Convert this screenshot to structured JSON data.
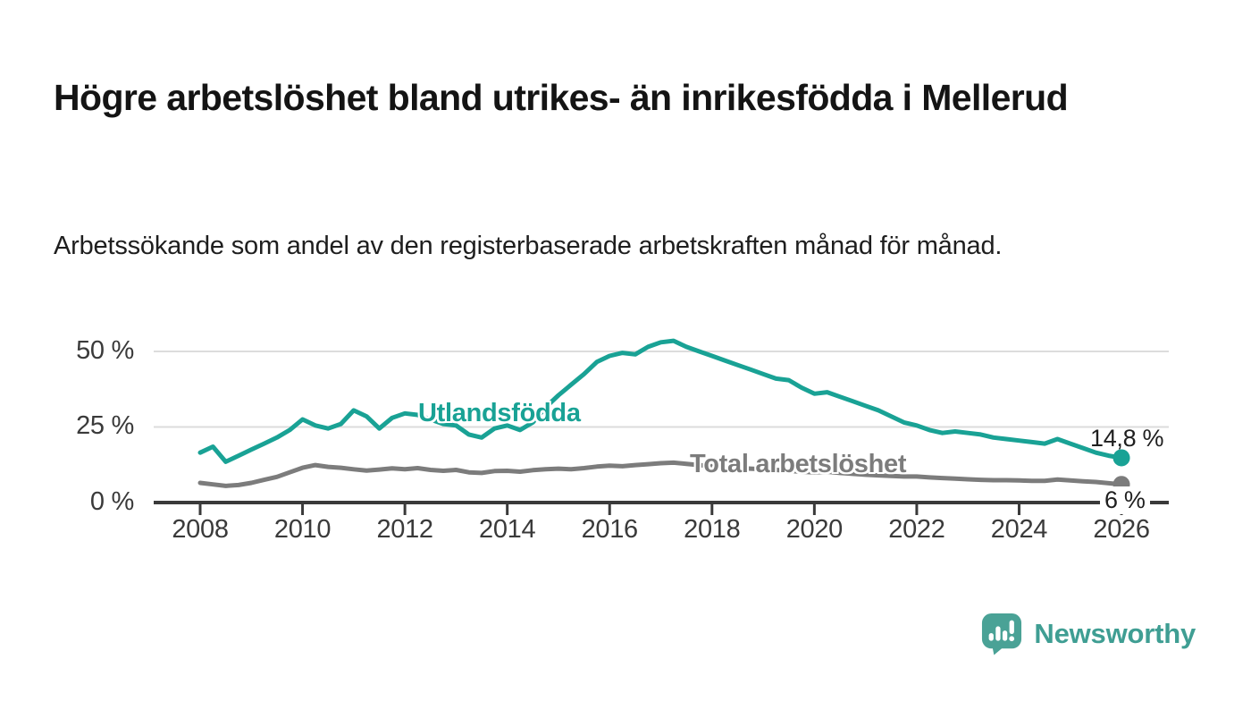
{
  "header": {
    "title": "Högre arbetslöshet bland utrikes- än inrikesfödda i Mellerud",
    "subtitle": "Arbetssökande som andel av den registerbaserade arbetskraften månad för månad."
  },
  "chart_data": {
    "type": "line",
    "unit": "%",
    "x_axis": {
      "ticks": [
        2008,
        2010,
        2012,
        2014,
        2016,
        2018,
        2020,
        2022,
        2024,
        2026
      ],
      "tick_labels": [
        "2008",
        "2010",
        "2012",
        "2014",
        "2016",
        "2018",
        "2020",
        "2022",
        "2024",
        "2026"
      ],
      "range": [
        2007.1,
        2026.9
      ]
    },
    "y_axis": {
      "ticks": [
        0,
        25,
        50
      ],
      "tick_labels": [
        "0 %",
        "25 %",
        "50 %"
      ],
      "range": [
        0,
        57
      ],
      "grid": true
    },
    "colors": {
      "axis": "#3a3a3a",
      "grid": "#dcdcdc",
      "accent": "#19a295"
    },
    "x": [
      2008.0,
      2008.25,
      2008.5,
      2008.75,
      2009.0,
      2009.25,
      2009.5,
      2009.75,
      2010.0,
      2010.25,
      2010.5,
      2010.75,
      2011.0,
      2011.25,
      2011.5,
      2011.75,
      2012.0,
      2012.25,
      2012.5,
      2012.75,
      2013.0,
      2013.25,
      2013.5,
      2013.75,
      2014.0,
      2014.25,
      2014.5,
      2014.75,
      2015.0,
      2015.25,
      2015.5,
      2015.75,
      2016.0,
      2016.25,
      2016.5,
      2016.75,
      2017.0,
      2017.25,
      2017.5,
      2017.75,
      2018.0,
      2018.25,
      2018.5,
      2018.75,
      2019.0,
      2019.25,
      2019.5,
      2019.75,
      2020.0,
      2020.25,
      2020.5,
      2020.75,
      2021.0,
      2021.25,
      2021.5,
      2021.75,
      2022.0,
      2022.25,
      2022.5,
      2022.75,
      2023.0,
      2023.25,
      2023.5,
      2023.75,
      2024.0,
      2024.25,
      2024.5,
      2024.75,
      2025.0,
      2025.25,
      2025.5,
      2025.75,
      2026.0
    ],
    "series": [
      {
        "name": "Utlandsfödda",
        "label": "Utlandsfödda",
        "end_label": "14,8 %",
        "end_value": 14.8,
        "color": "#19a295",
        "y": [
          16.5,
          18.5,
          13.5,
          15.5,
          17.5,
          19.5,
          21.5,
          24.0,
          27.5,
          25.5,
          24.5,
          26.0,
          30.5,
          28.5,
          24.5,
          28.0,
          29.5,
          29.0,
          27.5,
          26.0,
          25.5,
          22.5,
          21.5,
          24.5,
          25.5,
          24.0,
          26.5,
          31.5,
          35.5,
          39.0,
          42.5,
          46.5,
          48.5,
          49.5,
          49.0,
          51.5,
          53.0,
          53.5,
          51.5,
          50.0,
          48.5,
          47.0,
          45.5,
          44.0,
          42.5,
          41.0,
          40.5,
          38.0,
          36.0,
          36.5,
          35.0,
          33.5,
          32.0,
          30.5,
          28.5,
          26.5,
          25.5,
          24.0,
          23.0,
          23.5,
          23.0,
          22.5,
          21.5,
          21.0,
          20.5,
          20.0,
          19.5,
          21.0,
          19.5,
          18.0,
          16.5,
          15.5,
          14.8
        ]
      },
      {
        "name": "Total arbetslöshet",
        "label": "Total arbetslöshet",
        "end_label": "6 %",
        "end_value": 6.0,
        "color": "#7c7c7c",
        "y": [
          6.5,
          6.0,
          5.5,
          5.8,
          6.5,
          7.5,
          8.5,
          10.0,
          11.5,
          12.4,
          11.8,
          11.5,
          11.0,
          10.6,
          10.9,
          11.3,
          11.0,
          11.4,
          10.8,
          10.5,
          10.8,
          10.0,
          9.8,
          10.4,
          10.5,
          10.2,
          10.7,
          11.0,
          11.2,
          11.0,
          11.4,
          11.9,
          12.2,
          12.0,
          12.4,
          12.7,
          13.0,
          13.2,
          12.8,
          12.4,
          12.0,
          11.8,
          11.5,
          11.2,
          11.0,
          10.8,
          10.5,
          10.2,
          10.0,
          10.2,
          9.8,
          9.5,
          9.2,
          9.0,
          8.8,
          8.6,
          8.6,
          8.3,
          8.1,
          7.9,
          7.7,
          7.5,
          7.4,
          7.4,
          7.3,
          7.2,
          7.2,
          7.6,
          7.3,
          7.0,
          6.8,
          6.4,
          6.0
        ]
      }
    ]
  },
  "footer": {
    "brand": "Newsworthy"
  }
}
